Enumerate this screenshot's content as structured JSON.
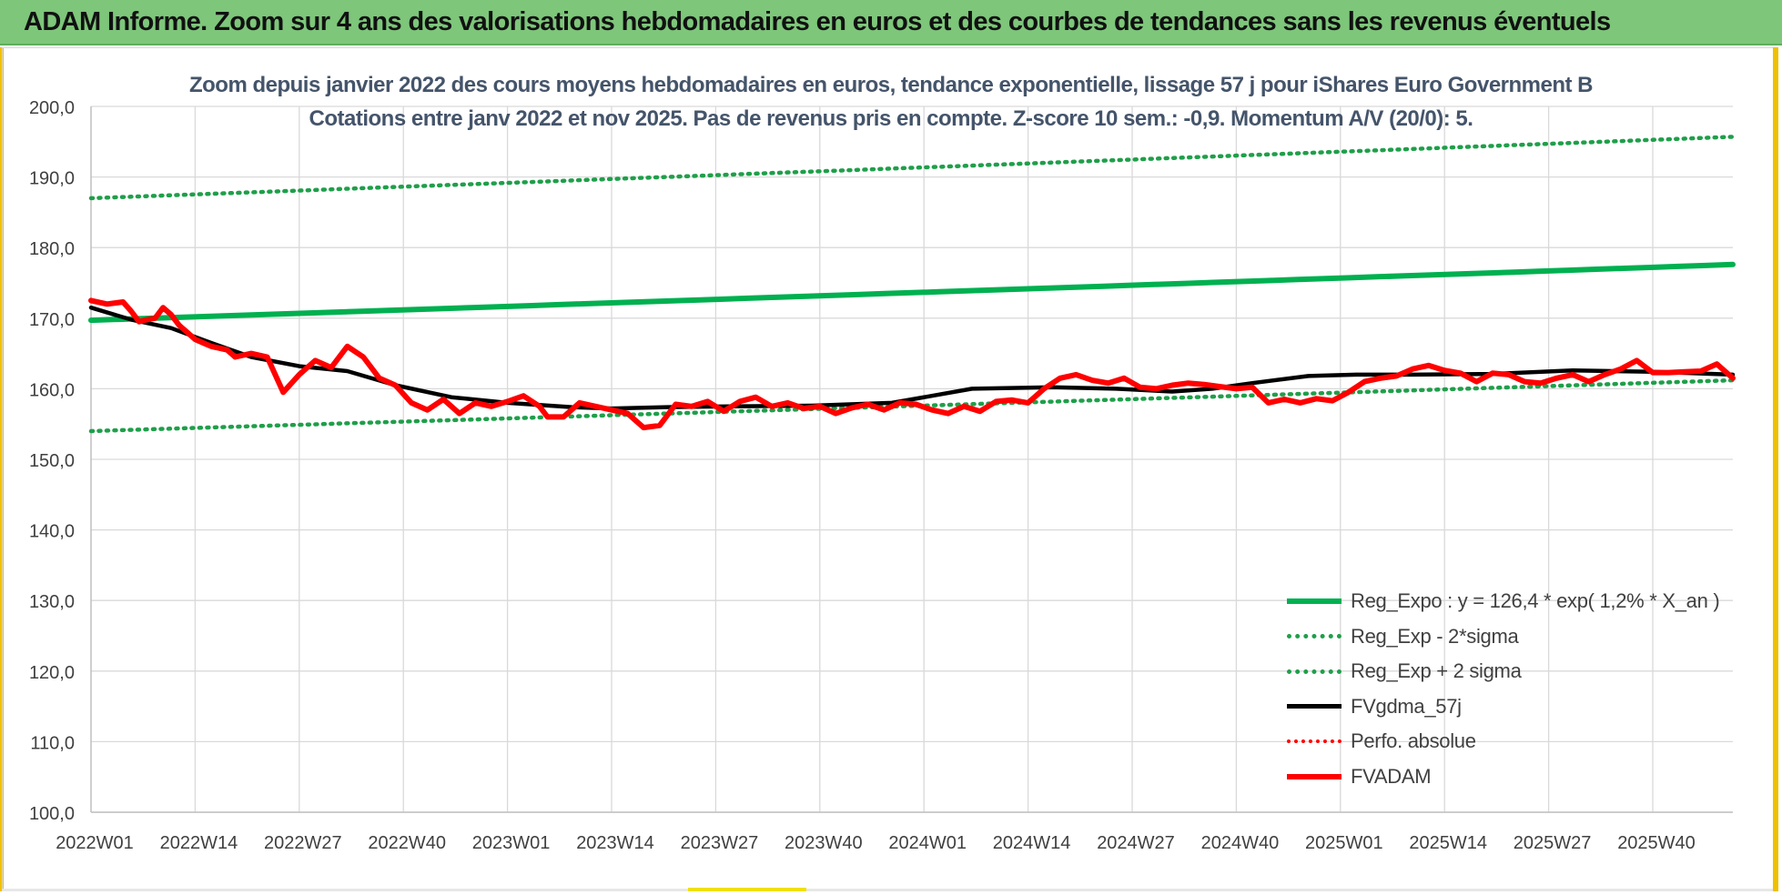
{
  "banner": {
    "title": "ADAM Informe. Zoom sur 4 ans des valorisations hebdomadaires en euros et des courbes de tendances sans les revenus éventuels"
  },
  "colors": {
    "banner": "#7dc67a",
    "reg_expo": "#00b050",
    "reg_band": "#1f9f4a",
    "fvgdma": "#000000",
    "perfo": "#ff0000",
    "fvadam": "#ff0000",
    "title_text": "#44546a",
    "grid": "#d9d9d9"
  },
  "chart_data": {
    "type": "line",
    "title": "Zoom depuis janvier 2022 des cours moyens hebdomadaires en euros, tendance exponentielle, lissage 57 j pour iShares Euro Government B",
    "subtitle": "Cotations entre janv 2022 et nov 2025. Pas de revenus pris en compte. Z-score 10 sem.: -0,9. Momentum A/V (20/0): 5.",
    "xlabel": "",
    "ylabel": "",
    "ylim": [
      100,
      200
    ],
    "y_ticks": [
      "100,0",
      "110,0",
      "120,0",
      "130,0",
      "140,0",
      "150,0",
      "160,0",
      "170,0",
      "180,0",
      "190,0",
      "200,0"
    ],
    "x_ticks": [
      "2022W01",
      "2022W14",
      "2022W27",
      "2022W40",
      "2023W01",
      "2023W14",
      "2023W27",
      "2023W40",
      "2024W01",
      "2024W14",
      "2024W27",
      "2024W40",
      "2025W01",
      "2025W14",
      "2025W27",
      "2025W40"
    ],
    "x_range_weeks": [
      0,
      205
    ],
    "grid": true,
    "legend_position": "bottom-right",
    "series": [
      {
        "name": "Reg_Expo : y = 126,4 * exp( 1,2% *  X_an )",
        "style": "solid-thick",
        "x": [
          0,
          205
        ],
        "values": [
          169.7,
          177.6
        ]
      },
      {
        "name": "Reg_Exp - 2*sigma",
        "style": "dotted",
        "x": [
          0,
          205
        ],
        "values": [
          154.0,
          161.2
        ]
      },
      {
        "name": "Reg_Exp + 2 sigma",
        "style": "dotted",
        "x": [
          0,
          205
        ],
        "values": [
          187.0,
          195.7
        ]
      },
      {
        "name": "FVgdma_57j",
        "style": "solid-medium",
        "x": [
          0,
          5,
          10,
          15,
          20,
          26,
          32,
          38,
          45,
          52,
          60,
          65,
          72,
          80,
          90,
          100,
          105,
          110,
          120,
          128,
          135,
          140,
          145,
          152,
          158,
          165,
          175,
          185,
          195,
          205
        ],
        "values": [
          171.5,
          169.8,
          168.6,
          166.5,
          164.5,
          163.2,
          162.5,
          160.5,
          158.8,
          158.0,
          157.4,
          157.2,
          157.4,
          157.5,
          157.6,
          158.0,
          159.0,
          160.0,
          160.2,
          160.0,
          159.6,
          160.0,
          160.8,
          161.8,
          162.0,
          162.0,
          162.1,
          162.6,
          162.4,
          162.0
        ]
      },
      {
        "name": "Perfo. absolue",
        "style": "dotted-red",
        "x": [],
        "values": []
      },
      {
        "name": "FVADAM",
        "style": "solid-thick",
        "x": [
          0,
          2,
          4,
          5,
          6,
          7,
          8,
          9,
          10,
          11,
          12,
          13,
          14,
          15,
          17,
          18,
          20,
          22,
          24,
          26,
          28,
          30,
          32,
          34,
          36,
          38,
          40,
          42,
          44,
          46,
          48,
          50,
          52,
          54,
          56,
          57,
          59,
          61,
          63,
          65,
          67,
          69,
          71,
          73,
          75,
          77,
          79,
          81,
          83,
          85,
          87,
          89,
          91,
          93,
          95,
          97,
          99,
          101,
          103,
          105,
          107,
          109,
          111,
          113,
          115,
          117,
          119,
          121,
          123,
          125,
          127,
          129,
          131,
          133,
          135,
          137,
          139,
          141,
          143,
          145,
          147,
          149,
          151,
          153,
          155,
          157,
          159,
          161,
          163,
          165,
          167,
          169,
          171,
          173,
          175,
          177,
          179,
          181,
          183,
          185,
          187,
          189,
          191,
          193,
          195,
          197,
          199,
          201,
          203,
          205
        ],
        "values": [
          172.5,
          172.0,
          172.3,
          171.0,
          169.5,
          169.8,
          170.0,
          171.5,
          170.5,
          169.0,
          168.0,
          167.0,
          166.5,
          166.0,
          165.5,
          164.5,
          165.0,
          164.5,
          159.5,
          162.0,
          164.0,
          163.0,
          166.0,
          164.5,
          161.5,
          160.5,
          158.0,
          157.0,
          158.5,
          156.5,
          158.0,
          157.5,
          158.2,
          159.0,
          157.5,
          156.0,
          156.0,
          158.0,
          157.5,
          157.0,
          156.5,
          154.5,
          154.8,
          157.8,
          157.5,
          158.2,
          156.8,
          158.2,
          158.8,
          157.5,
          158.0,
          157.2,
          157.5,
          156.5,
          157.3,
          157.8,
          157.0,
          158.0,
          157.8,
          157.0,
          156.5,
          157.5,
          156.8,
          158.2,
          158.4,
          158.0,
          160.0,
          161.5,
          162.0,
          161.2,
          160.8,
          161.5,
          160.2,
          160.0,
          160.5,
          160.8,
          160.6,
          160.3,
          160.0,
          160.2,
          158.0,
          158.5,
          158.0,
          158.6,
          158.3,
          159.5,
          161.0,
          161.5,
          161.8,
          162.8,
          163.3,
          162.6,
          162.2,
          161.0,
          162.2,
          162.0,
          161.0,
          160.8,
          161.5,
          162.0,
          161.0,
          162.0,
          162.8,
          164.0,
          162.3,
          162.3,
          162.4,
          162.5,
          163.5,
          161.5
        ]
      }
    ]
  }
}
